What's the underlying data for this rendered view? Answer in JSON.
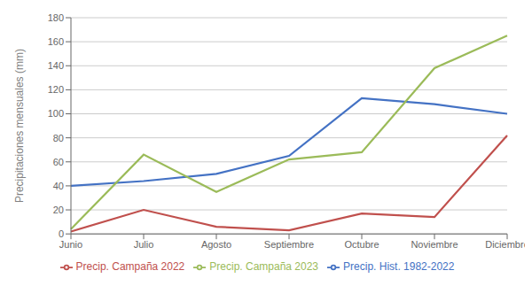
{
  "chart_data": {
    "type": "line",
    "ylabel": "Precipitaciones mensuales (mm)",
    "categories": [
      "Junio",
      "Julio",
      "Agosto",
      "Septiembre",
      "Octubre",
      "Noviembre",
      "Diciembre"
    ],
    "series": [
      {
        "name": "Precip. Hist. 1982-2022",
        "color": "#4472C4",
        "values": [
          40,
          44,
          50,
          65,
          113,
          108,
          100
        ]
      },
      {
        "name": "Precip. Campaña 2022",
        "color": "#C0504D",
        "values": [
          2,
          20,
          6,
          3,
          17,
          14,
          82
        ]
      },
      {
        "name": "Precip. Campaña 2023",
        "color": "#9BBB59",
        "values": [
          4,
          66,
          35,
          62,
          68,
          138,
          165
        ]
      }
    ],
    "ylim": [
      0,
      180
    ],
    "yticks": [
      0,
      20,
      40,
      60,
      80,
      100,
      120,
      140,
      160,
      180
    ],
    "grid": true,
    "legend": "bottom"
  }
}
